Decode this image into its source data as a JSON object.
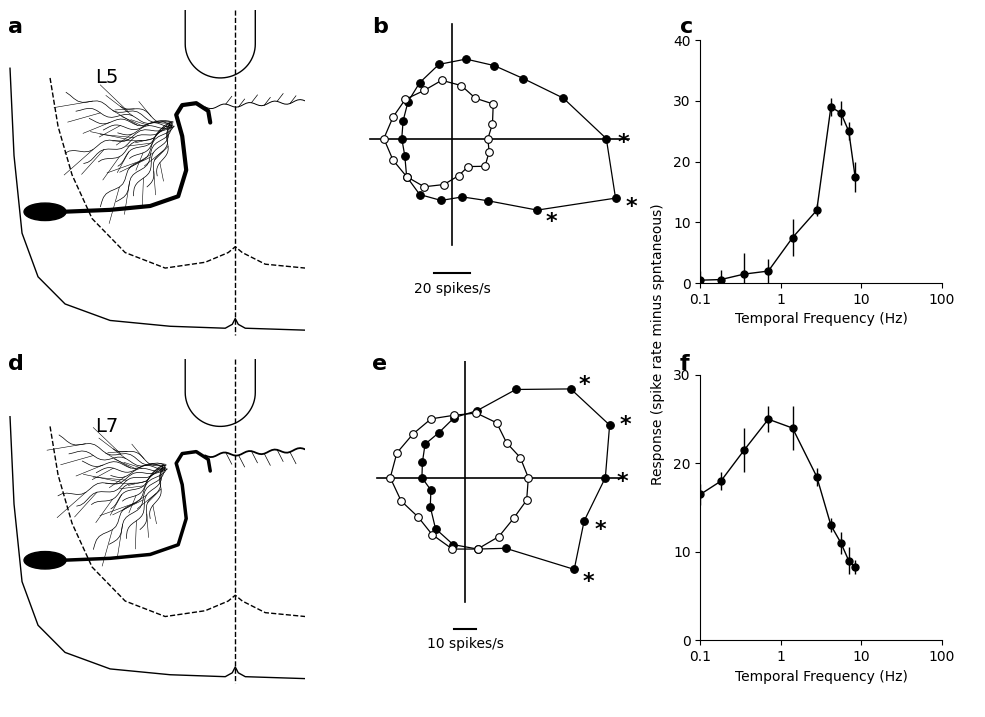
{
  "shared_y_label": "Response (spike rate minus spntaneous)",
  "chart_data": [
    {
      "panel": "a",
      "type": "diagram",
      "label": "L5"
    },
    {
      "panel": "b",
      "type": "polar",
      "directions": [
        0,
        20,
        40,
        60,
        80,
        100,
        120,
        140,
        160,
        180,
        200,
        220,
        240,
        260,
        280,
        300,
        320,
        340
      ],
      "series": [
        {
          "color": "black",
          "marker": "o",
          "values": [
            86,
            66,
            52,
            47,
            45,
            42,
            36,
            32,
            29,
            28,
            28,
            33,
            36,
            35,
            33,
            40,
            62,
            97
          ],
          "significant": [
            0,
            320,
            340
          ]
        },
        {
          "color": "white",
          "marker": "o",
          "values": [
            20,
            24,
            30,
            26,
            30,
            33,
            31,
            34,
            35,
            38,
            35,
            33,
            31,
            26,
            21,
            18,
            24,
            22
          ]
        }
      ],
      "significance_label": "*",
      "scale_bar": {
        "value": 20,
        "label": "20 spikes/s"
      }
    },
    {
      "panel": "c",
      "type": "line",
      "log": "x",
      "x": [
        0.1,
        0.18,
        0.35,
        0.7,
        1.4,
        2.8,
        4.2,
        5.6,
        7,
        8.4
      ],
      "series": [
        {
          "color": "black",
          "marker": "o",
          "values": [
            0.5,
            0.6,
            1.5,
            2,
            7.5,
            12,
            29,
            28,
            25,
            17.5
          ],
          "errors": [
            1.5,
            1.5,
            3.5,
            2,
            3,
            1,
            1.5,
            2,
            1.5,
            2.5
          ]
        }
      ],
      "x_label": "Temporal Frequency (Hz)",
      "xlim": [
        0.1,
        100
      ],
      "xticks": [
        0.1,
        1,
        10,
        100
      ],
      "ylim": [
        0,
        40
      ],
      "yticks": [
        0,
        10,
        20,
        30,
        40
      ]
    },
    {
      "panel": "d",
      "type": "diagram",
      "label": "L7"
    },
    {
      "panel": "e",
      "type": "polar",
      "directions": [
        0,
        20,
        40,
        60,
        80,
        100,
        120,
        140,
        160,
        180,
        200,
        220,
        240,
        260,
        280,
        300,
        320,
        340
      ],
      "series": [
        {
          "color": "black",
          "marker": "o",
          "values": [
            62,
            68,
            61,
            45,
            30,
            27,
            23,
            23,
            20,
            19,
            16,
            20,
            26,
            30,
            32,
            36,
            63,
            56
          ],
          "significant": [
            0,
            20,
            40,
            320,
            340
          ]
        },
        {
          "color": "white",
          "marker": "o",
          "values": [
            28,
            26,
            24,
            28,
            29,
            28,
            30,
            30,
            32,
            33,
            30,
            27,
            29,
            32,
            32,
            30,
            28,
            29
          ]
        }
      ],
      "significance_label": "*",
      "scale_bar": {
        "value": 10,
        "label": "10 spikes/s"
      }
    },
    {
      "panel": "f",
      "type": "line",
      "log": "x",
      "x": [
        0.1,
        0.18,
        0.35,
        0.7,
        1.4,
        2.8,
        4.2,
        5.6,
        7,
        8.4
      ],
      "series": [
        {
          "color": "black",
          "marker": "o",
          "values": [
            16.5,
            18,
            21.5,
            25,
            24,
            18.5,
            13,
            11,
            9,
            8.3
          ],
          "errors": [
            1.2,
            1,
            2.5,
            1.5,
            2.5,
            1,
            0.8,
            1.2,
            1.5,
            0.8
          ]
        }
      ],
      "x_label": "Temporal Frequency (Hz)",
      "xlim": [
        0.1,
        100
      ],
      "xticks": [
        0.1,
        1,
        10,
        100
      ],
      "ylim": [
        0,
        30
      ],
      "yticks": [
        0,
        10,
        20,
        30
      ]
    }
  ]
}
